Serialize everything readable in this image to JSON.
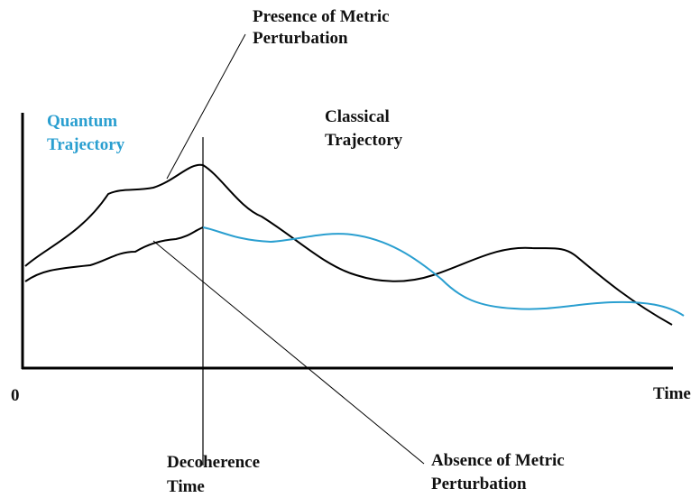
{
  "labels": {
    "presence": [
      "Presence of Metric",
      "Perturbation"
    ],
    "quantum": [
      "Quantum",
      "Trajectory"
    ],
    "classical": [
      "Classical",
      "Trajectory"
    ],
    "origin": "0",
    "time_axis": "Time",
    "decoherence": [
      "Decoherence",
      "Time"
    ],
    "absence": [
      "Absence of Metric",
      "Perturbation"
    ]
  }
}
